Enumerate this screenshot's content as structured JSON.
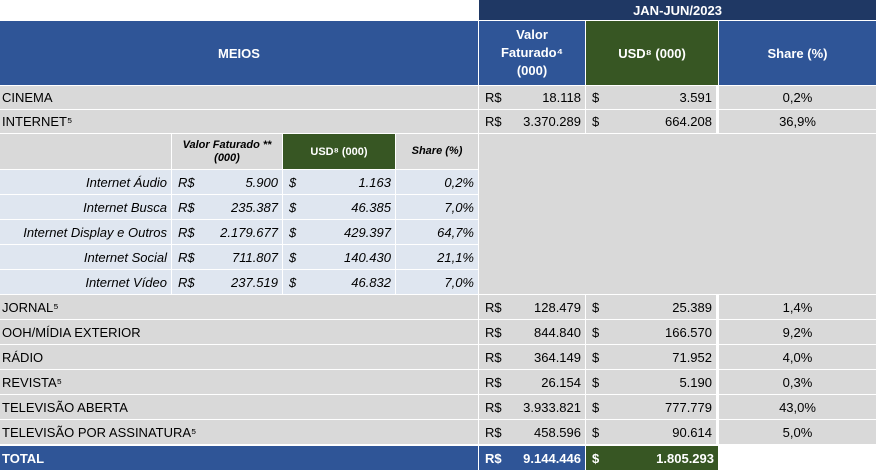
{
  "period": "JAN-JUN/2023",
  "headers": {
    "meios": "MEIOS",
    "valor_line1": "Valor",
    "valor_line2": "Faturado⁴",
    "valor_line3": "(000)",
    "usd": "USD⁸ (000)",
    "share": "Share (%)"
  },
  "currency": {
    "brl": "R$",
    "usd": "$"
  },
  "rows_top": [
    {
      "name": "CINEMA",
      "valor": "18.118",
      "usd": "3.591",
      "share": "0,2%"
    },
    {
      "name": "INTERNET⁵",
      "valor": "3.370.289",
      "usd": "664.208",
      "share": "36,9%"
    }
  ],
  "sub_headers": {
    "valor": "Valor Faturado ** (000)",
    "usd": "USD⁸ (000)",
    "share": "Share (%)"
  },
  "internet_sub": [
    {
      "name": "Internet Áudio",
      "valor": "5.900",
      "usd": "1.163",
      "share": "0,2%"
    },
    {
      "name": "Internet Busca",
      "valor": "235.387",
      "usd": "46.385",
      "share": "7,0%"
    },
    {
      "name": "Internet Display e Outros",
      "valor": "2.179.677",
      "usd": "429.397",
      "share": "64,7%"
    },
    {
      "name": "Internet Social",
      "valor": "711.807",
      "usd": "140.430",
      "share": "21,1%"
    },
    {
      "name": "Internet Vídeo",
      "valor": "237.519",
      "usd": "46.832",
      "share": "7,0%"
    }
  ],
  "rows_bottom": [
    {
      "name": "JORNAL⁵",
      "valor": "128.479",
      "usd": "25.389",
      "share": "1,4%"
    },
    {
      "name": "OOH/MÍDIA EXTERIOR",
      "valor": "844.840",
      "usd": "166.570",
      "share": "9,2%"
    },
    {
      "name": "RÁDIO",
      "valor": "364.149",
      "usd": "71.952",
      "share": "4,0%"
    },
    {
      "name": "REVISTA⁵",
      "valor": "26.154",
      "usd": "5.190",
      "share": "0,3%"
    },
    {
      "name": "TELEVISÃO ABERTA",
      "valor": "3.933.821",
      "usd": "777.779",
      "share": "43,0%"
    },
    {
      "name": "TELEVISÃO POR ASSINATURA⁵",
      "valor": "458.596",
      "usd": "90.614",
      "share": "5,0%"
    }
  ],
  "total": {
    "label": "TOTAL",
    "valor": "9.144.446",
    "usd": "1.805.293"
  }
}
